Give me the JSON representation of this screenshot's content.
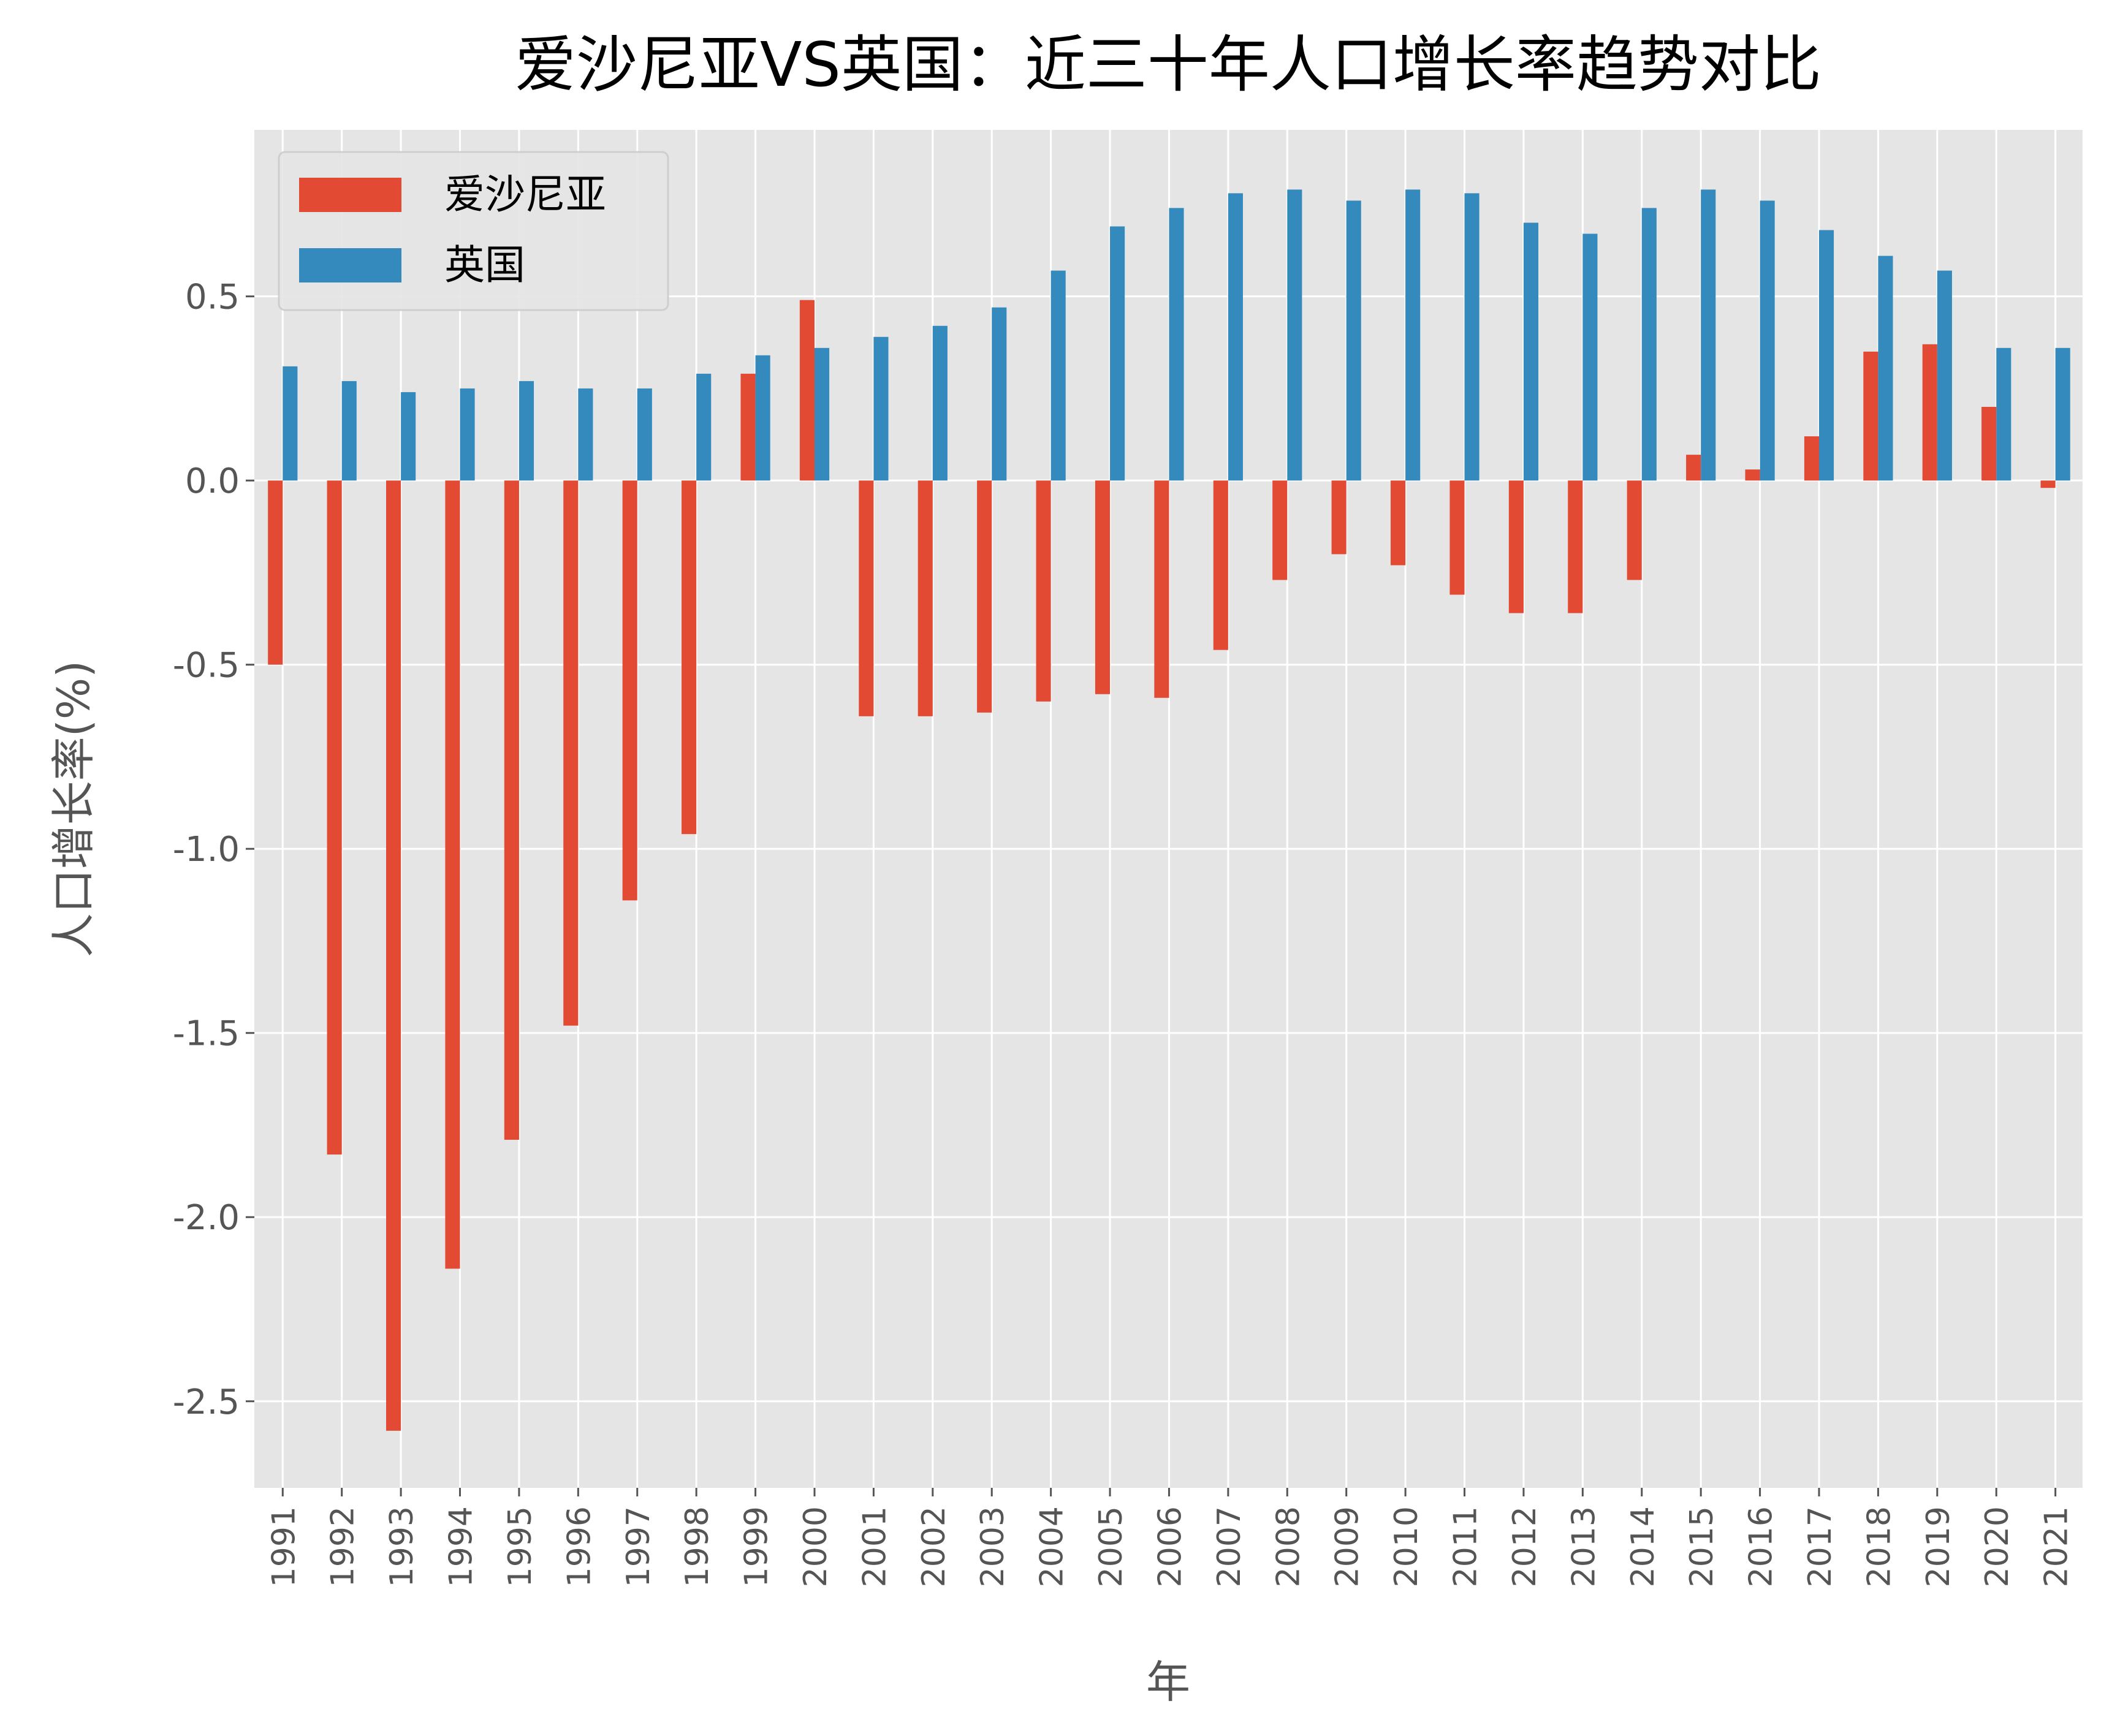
{
  "chart_data": {
    "type": "bar",
    "title": "爱沙尼亚VS英国：近三十年人口增长率趋势对比",
    "xlabel": "年",
    "ylabel": "人口增长率(%)",
    "ylim": [
      -2.735,
      0.952
    ],
    "yticks": [
      -2.5,
      -2.0,
      -1.5,
      -1.0,
      -0.5,
      0.0,
      0.5
    ],
    "ytick_labels": [
      "-2.5",
      "-2.0",
      "-1.5",
      "-1.0",
      "-0.5",
      "0.0",
      "0.5"
    ],
    "grid": true,
    "legend_position": "top-left",
    "background": "#E5E5E5",
    "categories": [
      "1991",
      "1992",
      "1993",
      "1994",
      "1995",
      "1996",
      "1997",
      "1998",
      "1999",
      "2000",
      "2001",
      "2002",
      "2003",
      "2004",
      "2005",
      "2006",
      "2007",
      "2008",
      "2009",
      "2010",
      "2011",
      "2012",
      "2013",
      "2014",
      "2015",
      "2016",
      "2017",
      "2018",
      "2019",
      "2020",
      "2021"
    ],
    "series": [
      {
        "name": "爱沙尼亚",
        "color": "#E24A33",
        "values": [
          -0.5,
          -1.83,
          -2.58,
          -2.14,
          -1.79,
          -1.48,
          -1.14,
          -0.96,
          0.29,
          0.49,
          -0.64,
          -0.64,
          -0.63,
          -0.6,
          -0.58,
          -0.59,
          -0.46,
          -0.27,
          -0.2,
          -0.23,
          -0.31,
          -0.36,
          -0.36,
          -0.27,
          0.07,
          0.03,
          0.12,
          0.35,
          0.37,
          0.2,
          -0.02
        ]
      },
      {
        "name": "英国",
        "color": "#348ABD",
        "values": [
          0.31,
          0.27,
          0.24,
          0.25,
          0.27,
          0.25,
          0.25,
          0.29,
          0.34,
          0.36,
          0.39,
          0.42,
          0.47,
          0.57,
          0.69,
          0.74,
          0.78,
          0.79,
          0.76,
          0.79,
          0.78,
          0.7,
          0.67,
          0.74,
          0.79,
          0.76,
          0.68,
          0.61,
          0.57,
          0.36,
          0.36
        ]
      }
    ]
  }
}
